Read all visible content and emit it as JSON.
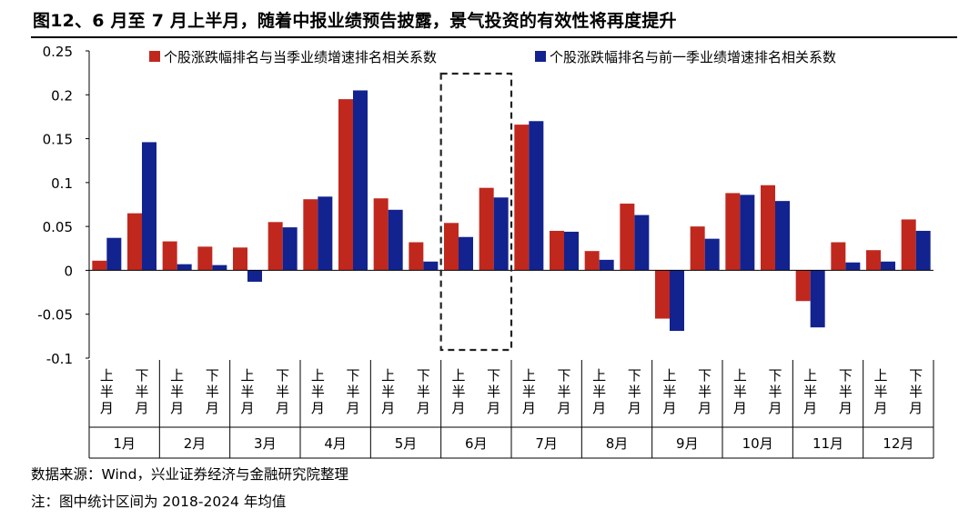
{
  "figure": {
    "title": "图12、6 月至 7 月上半月，随着中报业绩预告披露，景气投资的有效性将再度提升",
    "source": "数据来源：Wind，兴业证券经济与金融研究院整理",
    "note": "注：图中统计区间为 2018-2024 年均值"
  },
  "chart_data": {
    "type": "bar",
    "title": "",
    "xlabel": "",
    "ylabel": "",
    "ylim": [
      -0.1,
      0.25
    ],
    "yticks": [
      0.25,
      0.2,
      0.15,
      0.1,
      0.05,
      0,
      -0.05,
      -0.1
    ],
    "ytick_labels": [
      "0.25",
      "0.2",
      "0.15",
      "0.1",
      "0.05",
      "0",
      "-0.05",
      "-0.1"
    ],
    "grid": false,
    "legend_position": "top",
    "halves": [
      "上半月",
      "下半月"
    ],
    "months": [
      "1月",
      "2月",
      "3月",
      "4月",
      "5月",
      "6月",
      "7月",
      "8月",
      "9月",
      "10月",
      "11月",
      "12月"
    ],
    "categories": [
      "1月上半月",
      "1月下半月",
      "2月上半月",
      "2月下半月",
      "3月上半月",
      "3月下半月",
      "4月上半月",
      "4月下半月",
      "5月上半月",
      "5月下半月",
      "6月上半月",
      "6月下半月",
      "7月上半月",
      "7月下半月",
      "8月上半月",
      "8月下半月",
      "9月上半月",
      "9月下半月",
      "10月上半月",
      "10月下半月",
      "11月上半月",
      "11月下半月",
      "12月上半月",
      "12月下半月"
    ],
    "series": [
      {
        "name": "个股涨跌幅排名与当季业绩增速排名相关系数",
        "color": "#c0281e",
        "values": [
          0.011,
          0.065,
          0.033,
          0.027,
          0.026,
          0.055,
          0.081,
          0.195,
          0.082,
          0.032,
          0.054,
          0.094,
          0.166,
          0.045,
          0.022,
          0.076,
          -0.055,
          0.05,
          0.088,
          0.097,
          -0.035,
          0.032,
          0.023,
          0.058
        ]
      },
      {
        "name": "个股涨跌幅排名与前一季业绩增速排名相关系数",
        "color": "#12238f",
        "values": [
          0.037,
          0.146,
          0.007,
          0.006,
          -0.013,
          0.049,
          0.084,
          0.205,
          0.069,
          0.01,
          0.038,
          0.083,
          0.17,
          0.044,
          0.012,
          0.063,
          -0.069,
          0.036,
          0.086,
          0.079,
          -0.065,
          0.009,
          0.01,
          0.045
        ]
      }
    ],
    "highlight": {
      "months": [
        "6月"
      ],
      "style": "dashed-box"
    }
  }
}
